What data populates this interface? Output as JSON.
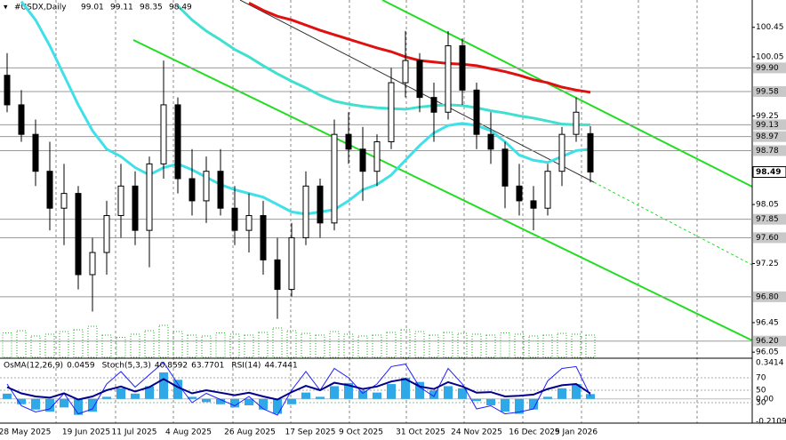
{
  "header": {
    "symbol": "#USDX,Daily"
  },
  "chart_data": {
    "type": "candlestick",
    "open": [
      99.8,
      99.4,
      99.0,
      98.5,
      98.0,
      98.2,
      97.1,
      97.4,
      97.9,
      98.3,
      97.7,
      98.6,
      99.4,
      98.4,
      98.1,
      98.5,
      98.0,
      97.7,
      97.9,
      97.3,
      96.9,
      97.6,
      98.3,
      97.8,
      99.0,
      98.8,
      98.5,
      98.9,
      99.7,
      100.0,
      99.5,
      99.3,
      100.2,
      99.6,
      99.0,
      98.8,
      98.3,
      98.1,
      98.0,
      98.5,
      99.0,
      99.01
    ],
    "high": [
      100.1,
      99.6,
      99.2,
      98.9,
      98.6,
      98.3,
      97.6,
      98.1,
      98.6,
      98.5,
      98.7,
      100.0,
      99.5,
      98.8,
      98.7,
      98.8,
      98.3,
      98.2,
      98.1,
      97.6,
      97.8,
      98.5,
      98.4,
      99.2,
      99.3,
      99.1,
      99.0,
      99.9,
      100.4,
      100.1,
      99.7,
      100.4,
      100.3,
      99.7,
      99.3,
      98.9,
      98.6,
      98.3,
      98.6,
      99.1,
      99.5,
      99.11
    ],
    "low": [
      99.3,
      98.9,
      98.3,
      97.7,
      97.5,
      96.9,
      96.6,
      97.1,
      97.6,
      97.5,
      97.2,
      98.4,
      98.2,
      97.9,
      97.8,
      97.9,
      97.5,
      97.4,
      97.1,
      96.5,
      96.8,
      97.5,
      97.6,
      97.7,
      98.6,
      98.1,
      98.3,
      98.8,
      99.5,
      99.3,
      98.9,
      99.2,
      99.4,
      98.8,
      98.6,
      98.0,
      97.9,
      97.7,
      97.9,
      98.3,
      98.9,
      98.35
    ],
    "close": [
      99.4,
      99.0,
      98.5,
      98.0,
      98.2,
      97.1,
      97.4,
      97.9,
      98.3,
      97.7,
      98.6,
      99.4,
      98.4,
      98.1,
      98.5,
      98.0,
      97.7,
      97.9,
      97.3,
      96.9,
      97.6,
      98.3,
      97.8,
      99.0,
      98.8,
      98.5,
      98.9,
      99.7,
      100.0,
      99.5,
      99.3,
      100.2,
      99.6,
      99.0,
      98.8,
      98.3,
      98.1,
      98.0,
      98.5,
      99.0,
      99.3,
      98.49
    ],
    "lines": [
      {
        "color": "#e01010",
        "values": [
          null,
          null,
          null,
          null,
          null,
          null,
          null,
          null,
          null,
          null,
          null,
          null,
          null,
          null,
          null,
          null,
          null,
          100.78,
          100.68,
          100.6,
          100.55,
          100.48,
          100.41,
          100.35,
          100.29,
          100.23,
          100.17,
          100.12,
          100.05,
          100.0,
          99.98,
          99.96,
          99.95,
          99.93,
          99.89,
          99.85,
          99.8,
          99.74,
          99.7,
          99.64,
          99.6,
          99.57
        ]
      },
      {
        "color": "#40e0d0",
        "values": [
          null,
          null,
          null,
          null,
          null,
          null,
          null,
          null,
          null,
          null,
          null,
          null,
          100.74,
          100.55,
          100.4,
          100.28,
          100.15,
          100.05,
          99.93,
          99.82,
          99.72,
          99.63,
          99.53,
          99.45,
          99.41,
          99.38,
          99.36,
          99.35,
          99.34,
          99.37,
          99.39,
          99.4,
          99.39,
          99.36,
          99.32,
          99.29,
          99.25,
          99.22,
          99.18,
          99.14,
          99.13,
          99.13
        ]
      },
      {
        "color": "#40e0e8",
        "values": [
          null,
          100.8,
          100.55,
          100.2,
          99.8,
          99.4,
          99.05,
          98.8,
          98.7,
          98.55,
          98.45,
          98.55,
          98.6,
          98.52,
          98.42,
          98.32,
          98.25,
          98.2,
          98.15,
          98.05,
          97.95,
          97.92,
          97.95,
          97.98,
          98.1,
          98.25,
          98.32,
          98.45,
          98.65,
          98.85,
          99.02,
          99.12,
          99.15,
          99.12,
          99.05,
          98.9,
          98.72,
          98.65,
          98.62,
          98.7,
          98.78,
          98.8
        ]
      }
    ],
    "volume": [
      55,
      60,
      48,
      52,
      58,
      62,
      70,
      50,
      45,
      52,
      60,
      72,
      58,
      50,
      48,
      55,
      52,
      50,
      56,
      66,
      60,
      54,
      50,
      58,
      52,
      48,
      50,
      56,
      62,
      58,
      50,
      56,
      54,
      52,
      50,
      55,
      52,
      48,
      50,
      54,
      52,
      50
    ],
    "ylim": [
      95.98,
      100.82
    ],
    "yticks": [
      96.05,
      96.45,
      97.25,
      98.05,
      99.25,
      100.05,
      100.45
    ],
    "levels": [
      {
        "value": 99.9,
        "label": "99.90"
      },
      {
        "value": 99.58,
        "label": "99.58"
      },
      99.13,
      98.97,
      98.78,
      97.85,
      {
        "value": 97.6,
        "label": "97.60"
      },
      {
        "value": 96.8,
        "label": "96.80"
      },
      {
        "value": 96.2,
        "label": "96.20"
      }
    ],
    "x_labels": [
      "28 May 2025",
      "19 Jun 2025",
      "11 Jul 2025",
      "4 Aug 2025",
      "26 Aug 2025",
      "17 Sep 2025",
      "9 Oct 2025",
      "31 Oct 2025",
      "24 Nov 2025",
      "16 Dec 2025",
      "9 Jan 2026"
    ],
    "indicators": [
      {
        "name": "OsMA(12,26,9)",
        "readings": [
          0.0459
        ]
      },
      {
        "name": "Stoch(5,3,3)",
        "readings": [
          40.8592,
          63.7701
        ]
      },
      {
        "name": "RSI(14)",
        "readings": [
          44.7441
        ]
      }
    ],
    "osma": [
      0.05,
      -0.05,
      -0.1,
      -0.12,
      -0.08,
      -0.15,
      -0.12,
      0.02,
      0.1,
      0.05,
      0.12,
      0.25,
      0.18,
      0.02,
      -0.03,
      -0.05,
      -0.08,
      -0.06,
      -0.1,
      -0.14,
      -0.05,
      0.06,
      0.02,
      0.12,
      0.15,
      0.08,
      0.06,
      0.14,
      0.2,
      0.16,
      0.08,
      0.12,
      0.1,
      -0.02,
      -0.06,
      -0.12,
      -0.14,
      -0.1,
      0.02,
      0.1,
      0.14,
      0.0459
    ],
    "stoch": [
      60,
      25,
      15,
      20,
      45,
      12,
      20,
      60,
      80,
      55,
      75,
      95,
      60,
      30,
      45,
      35,
      25,
      40,
      20,
      10,
      50,
      80,
      50,
      85,
      70,
      45,
      60,
      88,
      92,
      55,
      40,
      85,
      60,
      20,
      25,
      12,
      15,
      20,
      65,
      85,
      88,
      40.8592
    ],
    "rsi": [
      55,
      45,
      40,
      38,
      45,
      35,
      40,
      50,
      56,
      48,
      55,
      68,
      55,
      45,
      50,
      46,
      42,
      46,
      40,
      35,
      47,
      57,
      50,
      62,
      58,
      52,
      56,
      64,
      68,
      56,
      52,
      63,
      56,
      46,
      47,
      40,
      41,
      43,
      52,
      58,
      60,
      44.7441
    ],
    "y2lim": [
      -0.2109,
      0.3414
    ],
    "y2ticks": [
      {
        "value": 0,
        "label": "0.00"
      }
    ],
    "osc_lim": [
      0,
      100
    ],
    "osc_ticks": [
      30,
      50,
      70
    ]
  }
}
